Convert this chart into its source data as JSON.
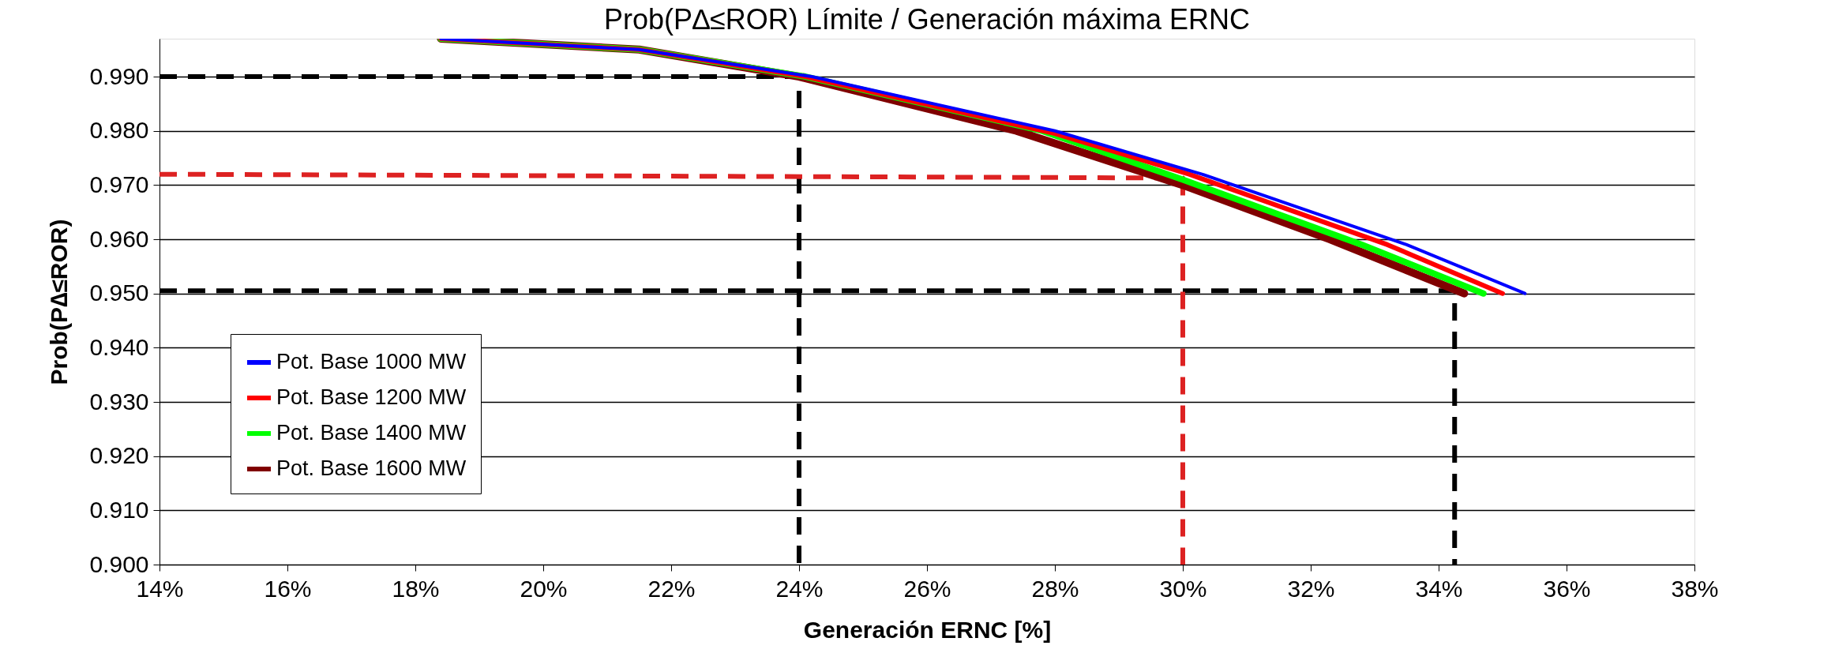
{
  "chart_data": {
    "type": "line",
    "title": "Prob(P∆≤ROR) Límite / Generación máxima ERNC",
    "xlabel": "Generación ERNC [%]",
    "ylabel": "Prob(P∆≤ROR)",
    "xlim": [
      14,
      38
    ],
    "ylim": [
      0.9,
      0.997
    ],
    "xticks": [
      {
        "value": 14,
        "label": "14%"
      },
      {
        "value": 16,
        "label": "16%"
      },
      {
        "value": 18,
        "label": "18%"
      },
      {
        "value": 20,
        "label": "20%"
      },
      {
        "value": 22,
        "label": "22%"
      },
      {
        "value": 24,
        "label": "24%"
      },
      {
        "value": 26,
        "label": "26%"
      },
      {
        "value": 28,
        "label": "28%"
      },
      {
        "value": 30,
        "label": "30%"
      },
      {
        "value": 32,
        "label": "32%"
      },
      {
        "value": 34,
        "label": "34%"
      },
      {
        "value": 36,
        "label": "36%"
      },
      {
        "value": 38,
        "label": "38%"
      }
    ],
    "yticks": [
      {
        "value": 0.9,
        "label": "0.900"
      },
      {
        "value": 0.91,
        "label": "0.910"
      },
      {
        "value": 0.92,
        "label": "0.920"
      },
      {
        "value": 0.93,
        "label": "0.930"
      },
      {
        "value": 0.94,
        "label": "0.940"
      },
      {
        "value": 0.95,
        "label": "0.950"
      },
      {
        "value": 0.96,
        "label": "0.960"
      },
      {
        "value": 0.97,
        "label": "0.970"
      },
      {
        "value": 0.98,
        "label": "0.980"
      },
      {
        "value": 0.99,
        "label": "0.990"
      }
    ],
    "grid": "y",
    "legend": "bottom left",
    "line_style": "solid",
    "series": [
      {
        "name": "Pot. Base 1000 MW",
        "color": "#0000ff",
        "x": [
          18.4,
          21.5,
          24.2,
          28.0,
          30.3,
          33.5,
          35.35
        ],
        "values": [
          0.997,
          0.995,
          0.99,
          0.98,
          0.972,
          0.959,
          0.95
        ]
      },
      {
        "name": "Pot. Base 1200 MW",
        "color": "#ff0000",
        "x": [
          18.4,
          21.5,
          24.1,
          28.0,
          30.1,
          33.2,
          35.0
        ],
        "values": [
          0.997,
          0.995,
          0.99,
          0.9795,
          0.972,
          0.959,
          0.95
        ]
      },
      {
        "name": "Pot. Base 1400 MW",
        "color": "#00ff00",
        "x": [
          18.4,
          21.5,
          24.1,
          27.8,
          30.0,
          32.8,
          34.7
        ],
        "values": [
          0.997,
          0.995,
          0.99,
          0.98,
          0.971,
          0.959,
          0.95
        ]
      },
      {
        "name": "Pot. Base 1600 MW",
        "color": "#800000",
        "x": [
          18.4,
          21.5,
          24.0,
          27.4,
          30.0,
          32.3,
          34.4
        ],
        "values": [
          0.997,
          0.995,
          0.99,
          0.98,
          0.97,
          0.96,
          0.95
        ]
      },
      {
        "type": "line",
        "color": "#000000",
        "line_style": "dashed",
        "x": [
          14,
          24,
          24
        ],
        "values": [
          0.99,
          0.99,
          0.9
        ]
      },
      {
        "type": "line",
        "color": "#000000",
        "line_style": "dashed",
        "x": [
          14,
          34.25,
          34.25
        ],
        "values": [
          0.9505,
          0.9505,
          0.9
        ]
      },
      {
        "type": "line",
        "color": "#dd2222",
        "line_style": "dashed",
        "x": [
          14,
          30,
          30
        ],
        "values": [
          0.972,
          0.9713,
          0.9
        ]
      }
    ]
  }
}
